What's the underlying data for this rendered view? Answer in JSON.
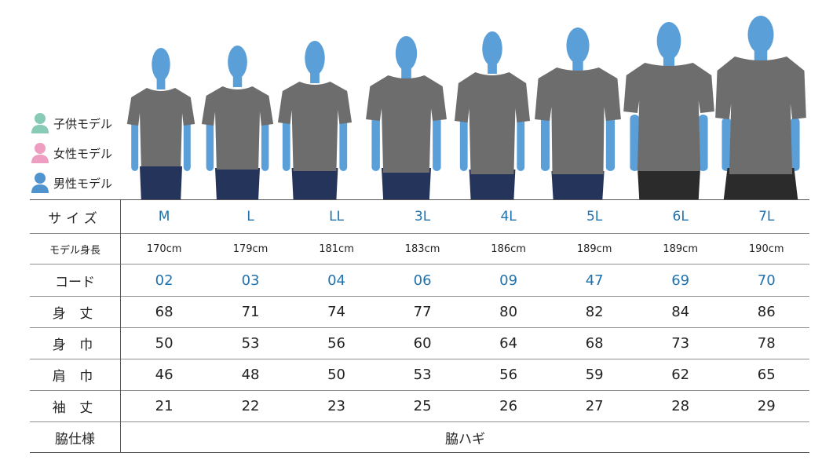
{
  "legend": [
    {
      "label": "子供モデル",
      "color": "#87cbb6"
    },
    {
      "label": "女性モデル",
      "color": "#ee9ec0"
    },
    {
      "label": "男性モデル",
      "color": "#4f93cf"
    }
  ],
  "colors": {
    "skin": "#5b9fd8",
    "shirt": "#6d6d6d",
    "jeans": "#25345a",
    "shorts": "#2b2b2b",
    "accent": "#1f72ad"
  },
  "table": {
    "headers": {
      "size": "サイズ",
      "height": "モデル身長",
      "code": "コード",
      "length": "身 丈",
      "width": "身 巾",
      "shoulder": "肩 巾",
      "sleeve": "袖 丈",
      "side": "脇仕様"
    },
    "sizes": [
      "M",
      "L",
      "LL",
      "3L",
      "4L",
      "5L",
      "6L",
      "7L"
    ],
    "heights": [
      "170cm",
      "179cm",
      "181cm",
      "183cm",
      "186cm",
      "189cm",
      "189cm",
      "190cm"
    ],
    "codes": [
      "02",
      "03",
      "04",
      "06",
      "09",
      "47",
      "69",
      "70"
    ],
    "length": [
      "68",
      "71",
      "74",
      "77",
      "80",
      "82",
      "84",
      "86"
    ],
    "width": [
      "50",
      "53",
      "56",
      "60",
      "64",
      "68",
      "73",
      "78"
    ],
    "shoulder": [
      "46",
      "48",
      "50",
      "53",
      "56",
      "59",
      "62",
      "65"
    ],
    "sleeve": [
      "21",
      "22",
      "23",
      "25",
      "26",
      "27",
      "28",
      "29"
    ],
    "side_value": "脇ハギ"
  }
}
